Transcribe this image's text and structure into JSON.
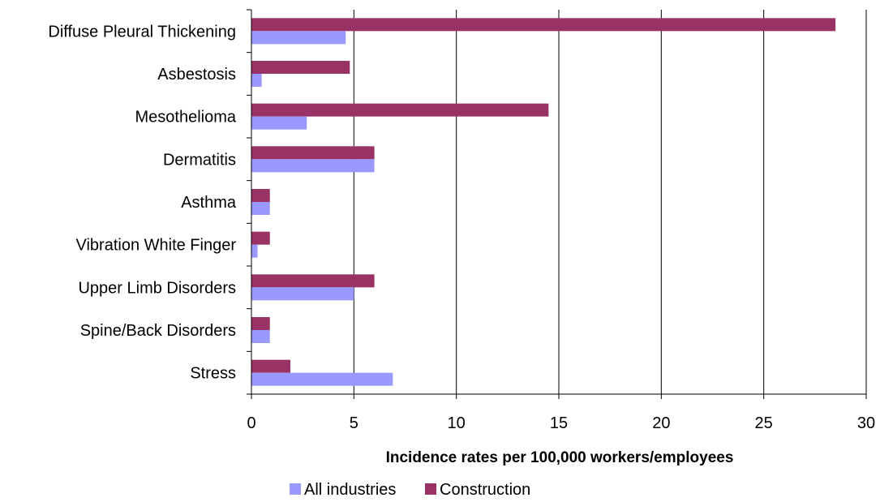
{
  "chart_data": {
    "type": "bar",
    "orientation": "horizontal",
    "categories": [
      "Diffuse Pleural Thickening",
      "Asbestosis",
      "Mesothelioma",
      "Dermatitis",
      "Asthma",
      "Vibration White Finger",
      "Upper Limb Disorders",
      "Spine/Back Disorders",
      "Stress"
    ],
    "series": [
      {
        "name": "All industries",
        "color": "#9999FF",
        "values": [
          4.6,
          0.5,
          2.7,
          6.0,
          0.9,
          0.3,
          5.0,
          0.9,
          6.9
        ]
      },
      {
        "name": "Construction",
        "color": "#993366",
        "values": [
          28.5,
          4.8,
          14.5,
          6.0,
          0.9,
          0.9,
          6.0,
          0.9,
          1.9
        ]
      }
    ],
    "xlabel": "Incidence rates per 100,000 workers/employees",
    "ylabel": "",
    "title": "",
    "xlim": [
      0,
      30
    ],
    "x_ticks": [
      "0",
      "5",
      "10",
      "15",
      "20",
      "25",
      "30"
    ],
    "grid": "vertical gridlines",
    "legend_placement": "bottom"
  }
}
